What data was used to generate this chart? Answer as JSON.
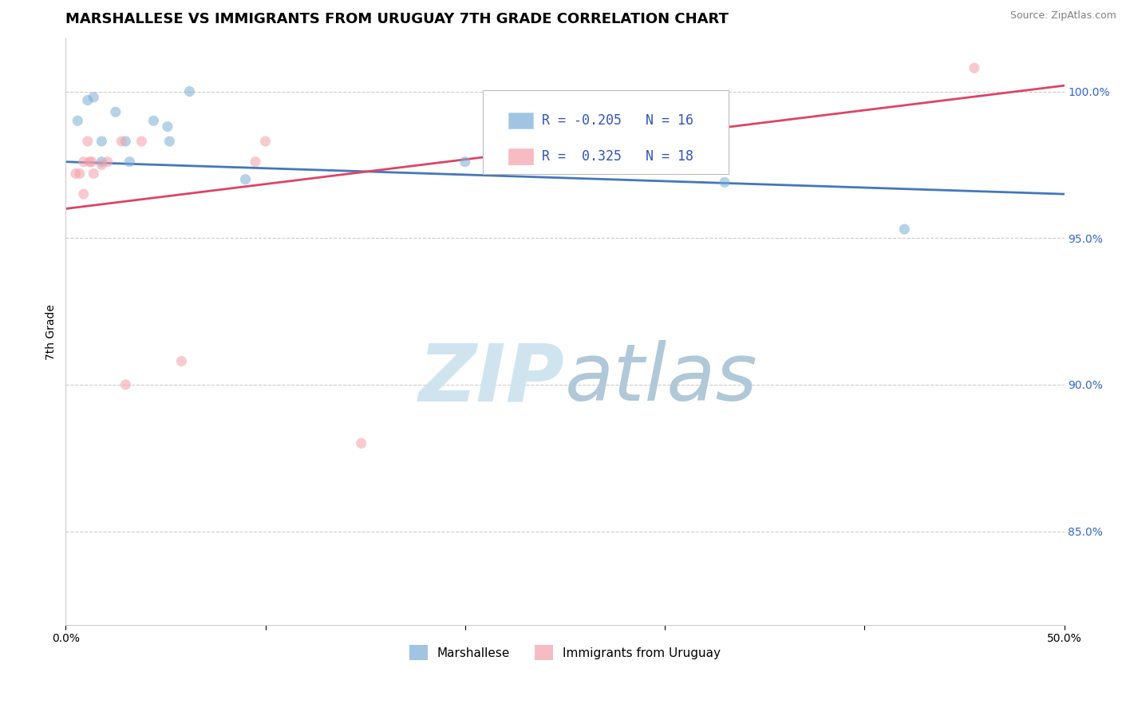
{
  "title": "MARSHALLESE VS IMMIGRANTS FROM URUGUAY 7TH GRADE CORRELATION CHART",
  "source": "Source: ZipAtlas.com",
  "ylabel": "7th Grade",
  "xmin": 0.0,
  "xmax": 0.5,
  "ymin": 0.818,
  "ymax": 1.018,
  "yticks": [
    0.85,
    0.9,
    0.95,
    1.0
  ],
  "ytick_labels": [
    "85.0%",
    "90.0%",
    "95.0%",
    "100.0%"
  ],
  "xticks": [
    0.0,
    0.1,
    0.2,
    0.3,
    0.4,
    0.5
  ],
  "xtick_labels": [
    "0.0%",
    "",
    "",
    "",
    "",
    "50.0%"
  ],
  "blue_scatter_x": [
    0.011,
    0.014,
    0.006,
    0.025,
    0.062,
    0.051,
    0.052,
    0.018,
    0.018,
    0.03,
    0.032,
    0.044,
    0.33,
    0.42,
    0.2,
    0.09
  ],
  "blue_scatter_y": [
    0.997,
    0.998,
    0.99,
    0.993,
    1.0,
    0.988,
    0.983,
    0.983,
    0.976,
    0.983,
    0.976,
    0.99,
    0.969,
    0.953,
    0.976,
    0.97
  ],
  "pink_scatter_x": [
    0.005,
    0.007,
    0.009,
    0.009,
    0.011,
    0.012,
    0.013,
    0.014,
    0.018,
    0.021,
    0.028,
    0.03,
    0.038,
    0.058,
    0.095,
    0.1,
    0.148,
    0.455
  ],
  "pink_scatter_y": [
    0.972,
    0.972,
    0.965,
    0.976,
    0.983,
    0.976,
    0.976,
    0.972,
    0.975,
    0.976,
    0.983,
    0.9,
    0.983,
    0.908,
    0.976,
    0.983,
    0.88,
    1.008
  ],
  "blue_R": -0.205,
  "blue_N": 16,
  "pink_R": 0.325,
  "pink_N": 18,
  "blue_color": "#7aadd4",
  "pink_color": "#f4a0aa",
  "blue_line_color": "#4477bb",
  "pink_line_color": "#dd4466",
  "scatter_alpha": 0.55,
  "scatter_size": 90,
  "grid_color": "#cccccc",
  "background_color": "#ffffff",
  "title_fontsize": 13,
  "label_fontsize": 10,
  "tick_fontsize": 10,
  "watermark_zip_color": "#d0e4f0",
  "watermark_atlas_color": "#b0c8d8"
}
